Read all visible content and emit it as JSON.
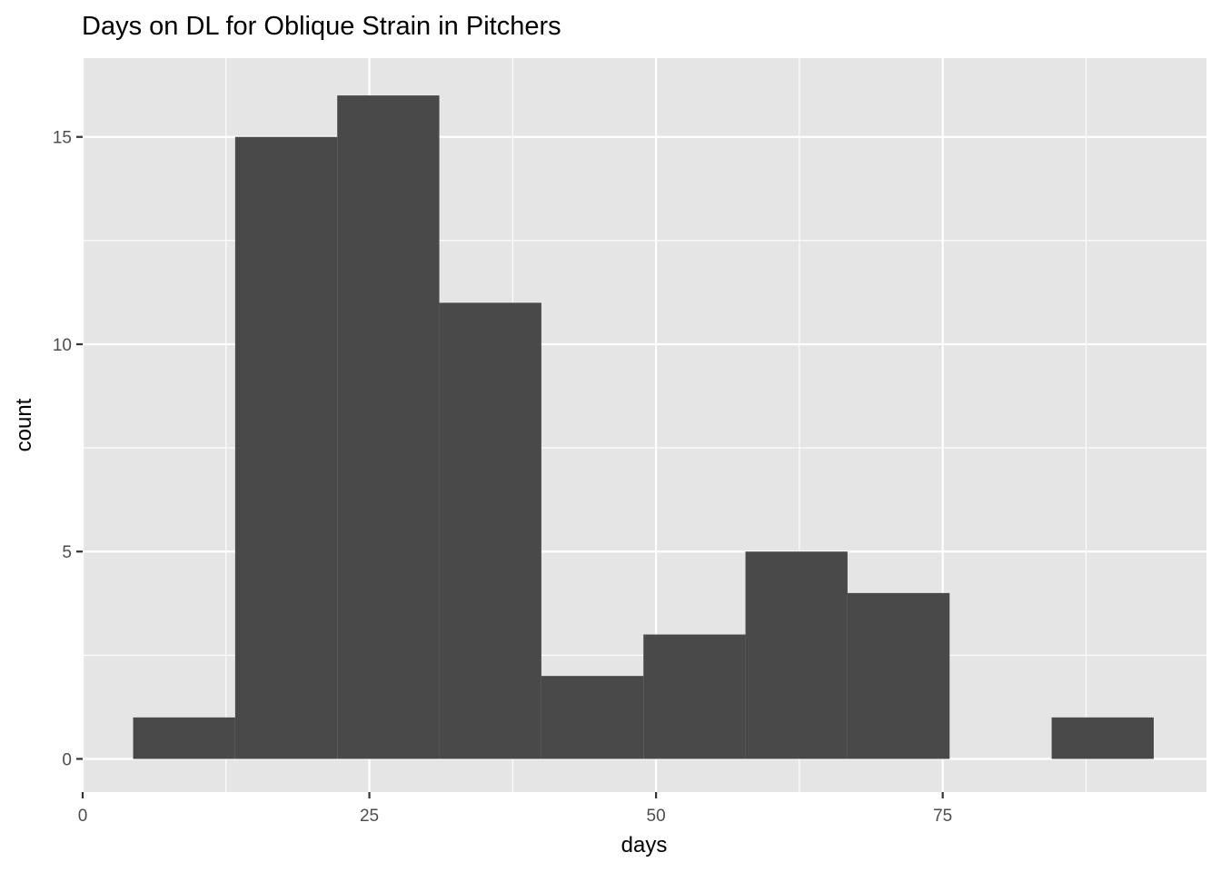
{
  "chart_data": {
    "type": "bar",
    "title": "Days on DL for Oblique Strain in Pitchers",
    "xlabel": "days",
    "ylabel": "count",
    "xlim": [
      0,
      98
    ],
    "ylim": [
      -0.8,
      16.9
    ],
    "x_ticks": [
      0,
      25,
      50,
      75
    ],
    "y_ticks": [
      0,
      5,
      10,
      15
    ],
    "x_minor_grid": [
      12.5,
      37.5,
      62.5,
      87.5
    ],
    "y_minor_grid": [
      2.5,
      7.5,
      12.5
    ],
    "grid": true,
    "bins": [
      {
        "x_start": 4.4,
        "x_end": 13.3,
        "count": 1
      },
      {
        "x_start": 13.3,
        "x_end": 22.2,
        "count": 15
      },
      {
        "x_start": 22.2,
        "x_end": 31.1,
        "count": 16
      },
      {
        "x_start": 31.1,
        "x_end": 40.0,
        "count": 11
      },
      {
        "x_start": 40.0,
        "x_end": 48.9,
        "count": 2
      },
      {
        "x_start": 48.9,
        "x_end": 57.8,
        "count": 3
      },
      {
        "x_start": 57.8,
        "x_end": 66.7,
        "count": 5
      },
      {
        "x_start": 66.7,
        "x_end": 75.6,
        "count": 4
      },
      {
        "x_start": 75.6,
        "x_end": 84.5,
        "count": 0
      },
      {
        "x_start": 84.5,
        "x_end": 93.4,
        "count": 1
      }
    ],
    "colors": {
      "panel": "#e5e5e5",
      "bar": "#494949",
      "grid": "#ffffff"
    }
  }
}
